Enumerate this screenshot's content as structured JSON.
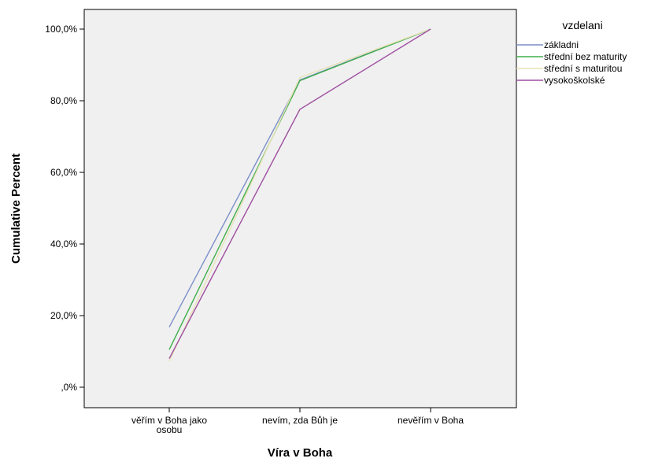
{
  "chart_data": {
    "type": "line",
    "xlabel": "Víra v Boha",
    "ylabel": "Cumulative Percent",
    "categories": [
      [
        "věřím v Boha jako",
        "osobu"
      ],
      [
        "nevím, zda Bůh je"
      ],
      [
        "nevěřím v Boha"
      ]
    ],
    "y_ticks": [
      0,
      20,
      40,
      60,
      80,
      100
    ],
    "y_tick_labels": [
      ",0%",
      "20,0%",
      "40,0%",
      "60,0%",
      "80,0%",
      "100,0%"
    ],
    "ylim": [
      -6,
      106
    ],
    "grid": false,
    "legend_position": "right",
    "legend_title": "vzdelani",
    "series": [
      {
        "name": "základni",
        "color": "#7b8fc9",
        "values": [
          16.8,
          85.8,
          100.0
        ]
      },
      {
        "name": "střední bez maturity",
        "color": "#3fae4a",
        "values": [
          10.5,
          85.6,
          100.0
        ]
      },
      {
        "name": "střední s maturitou",
        "color": "#e8e2b8",
        "values": [
          7.2,
          86.5,
          100.0
        ]
      },
      {
        "name": "vysokoškolské",
        "color": "#9e4fa0",
        "values": [
          8.0,
          77.6,
          100.0
        ]
      }
    ]
  }
}
